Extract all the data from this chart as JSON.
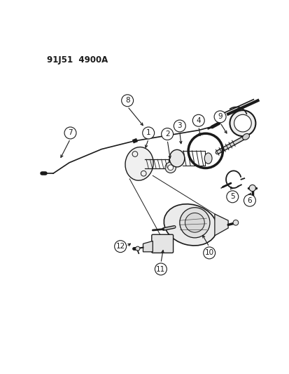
{
  "title": "91J51  4900A",
  "bg_color": "#ffffff",
  "line_color": "#1a1a1a",
  "fig_width": 4.14,
  "fig_height": 5.33,
  "dpi": 100
}
